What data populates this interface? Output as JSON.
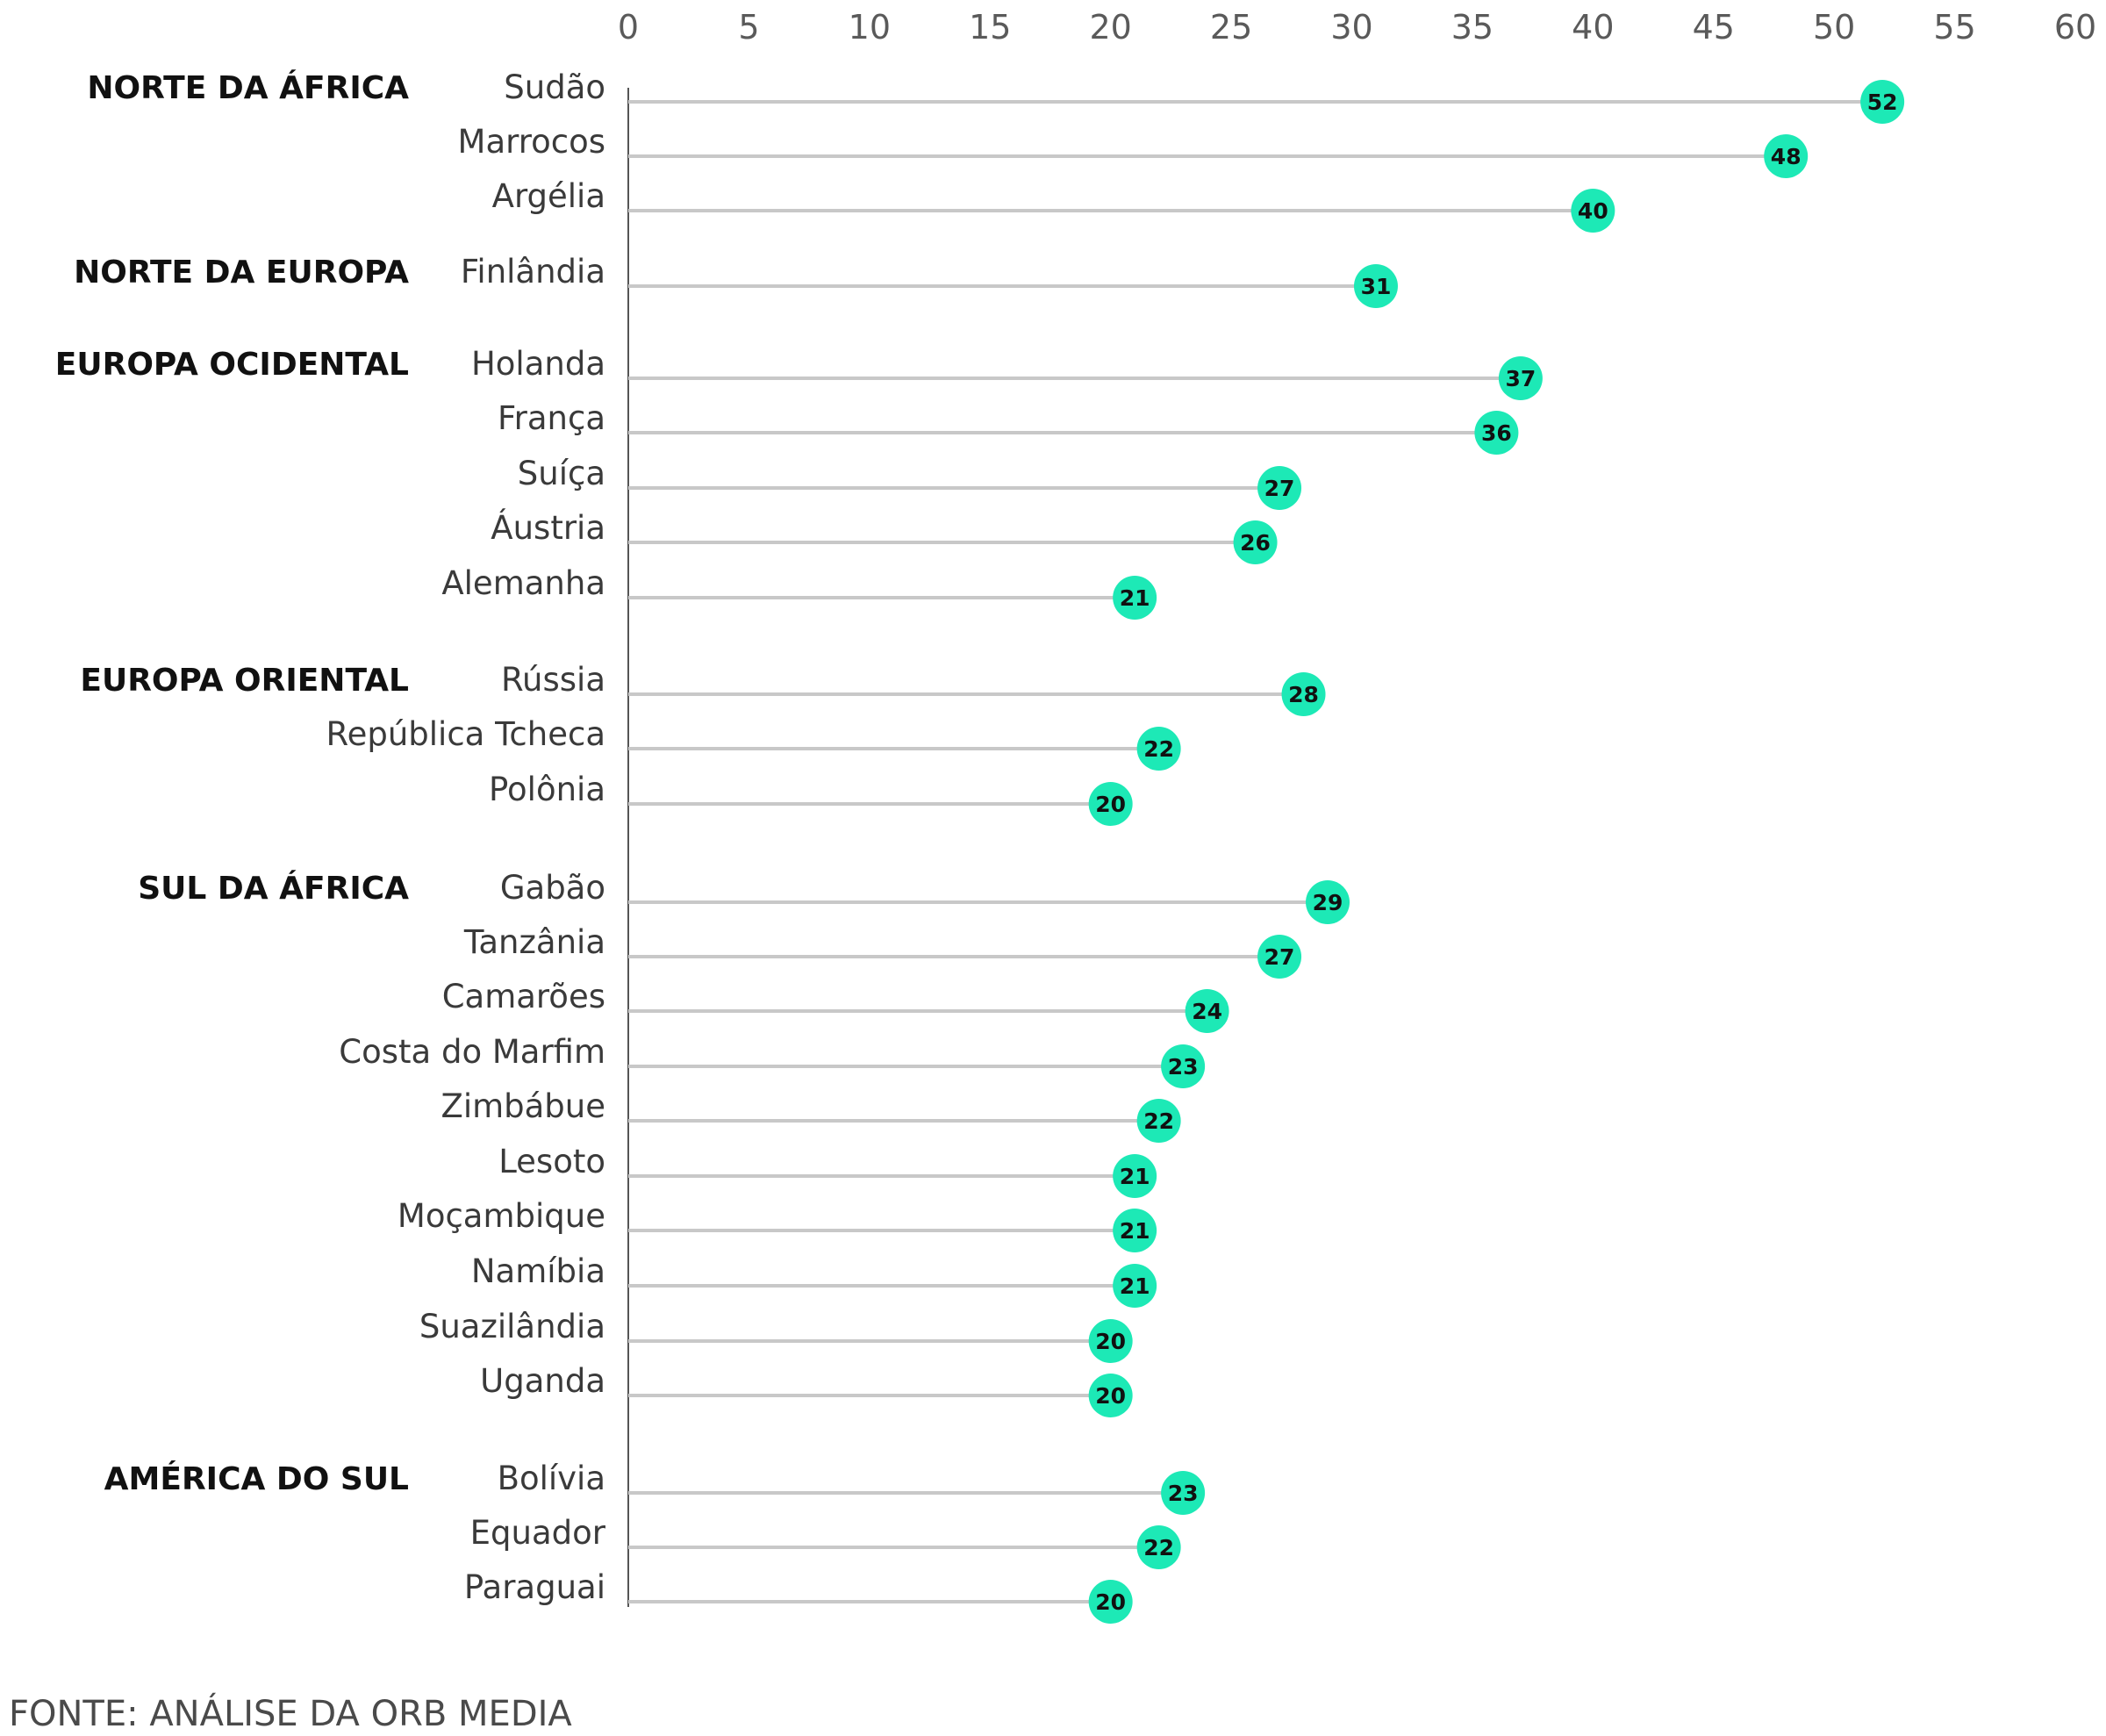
{
  "chart_data": {
    "type": "lollipop",
    "xlim": [
      0,
      60
    ],
    "xticks": [
      0,
      5,
      10,
      15,
      20,
      25,
      30,
      35,
      40,
      45,
      50,
      55,
      60
    ],
    "grid": false,
    "colors": {
      "marker": "#1de9b6",
      "stem": "#c8c8c8",
      "axis": "#555555"
    },
    "groups": [
      {
        "region": "NORTE DA ÁFRICA",
        "items": [
          {
            "label": "Sudão",
            "value": 52
          },
          {
            "label": "Marrocos",
            "value": 48
          },
          {
            "label": "Argélia",
            "value": 40
          }
        ]
      },
      {
        "region": "NORTE DA EUROPA",
        "items": [
          {
            "label": "Finlândia",
            "value": 31
          }
        ]
      },
      {
        "region": "EUROPA OCIDENTAL",
        "items": [
          {
            "label": "Holanda",
            "value": 37
          },
          {
            "label": "França",
            "value": 36
          },
          {
            "label": "Suíça",
            "value": 27
          },
          {
            "label": "Áustria",
            "value": 26
          },
          {
            "label": "Alemanha",
            "value": 21
          }
        ]
      },
      {
        "region": "EUROPA ORIENTAL",
        "items": [
          {
            "label": "Rússia",
            "value": 28
          },
          {
            "label": "República Tcheca",
            "value": 22
          },
          {
            "label": "Polônia",
            "value": 20
          }
        ]
      },
      {
        "region": "SUL DA ÁFRICA",
        "items": [
          {
            "label": "Gabão",
            "value": 29
          },
          {
            "label": "Tanzânia",
            "value": 27
          },
          {
            "label": "Camarões",
            "value": 24
          },
          {
            "label": "Costa do Marfim",
            "value": 23
          },
          {
            "label": "Zimbábue",
            "value": 22
          },
          {
            "label": "Lesoto",
            "value": 21
          },
          {
            "label": "Moçambique",
            "value": 21
          },
          {
            "label": "Namíbia",
            "value": 21
          },
          {
            "label": "Suazilândia",
            "value": 20
          },
          {
            "label": "Uganda",
            "value": 20
          }
        ]
      },
      {
        "region": "AMÉRICA DO SUL",
        "items": [
          {
            "label": "Bolívia",
            "value": 23
          },
          {
            "label": "Equador",
            "value": 22
          },
          {
            "label": "Paraguai",
            "value": 20
          }
        ]
      }
    ]
  },
  "source": "FONTE: ANÁLISE DA ORB MEDIA"
}
